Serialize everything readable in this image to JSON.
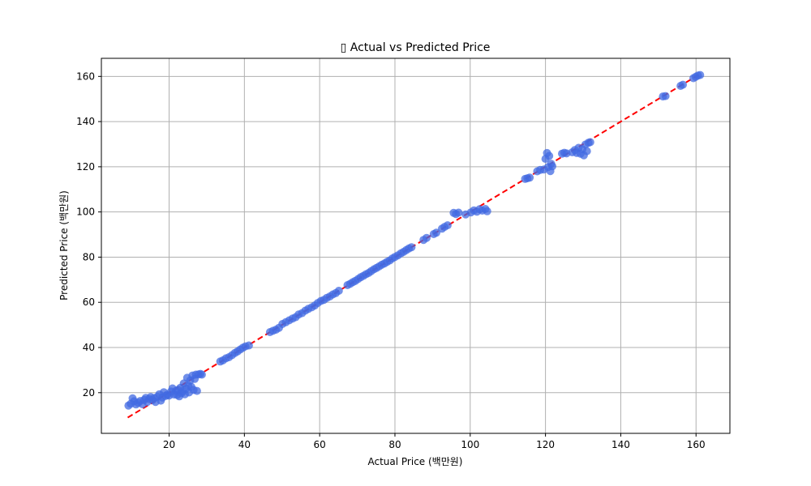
{
  "chart_data": {
    "type": "scatter",
    "title": "▯ Actual vs Predicted Price",
    "xlabel": "Actual Price (백만원)",
    "ylabel": "Predicted Price (백만원)",
    "xlim": [
      2,
      169
    ],
    "ylim": [
      2,
      168
    ],
    "xticks": [
      20,
      40,
      60,
      80,
      100,
      120,
      140,
      160
    ],
    "yticks": [
      20,
      40,
      60,
      80,
      100,
      120,
      140,
      160
    ],
    "grid": true,
    "point_color": "#4169e1",
    "line_color": "#ff0000",
    "reference_line": {
      "style": "dashed",
      "from": [
        9,
        9
      ],
      "to": [
        161,
        161
      ]
    },
    "points": [
      [
        9.2,
        14.3
      ],
      [
        9.8,
        15.1
      ],
      [
        10.3,
        17.5
      ],
      [
        10.7,
        16.2
      ],
      [
        11.2,
        14.8
      ],
      [
        11.8,
        15.5
      ],
      [
        12.3,
        16.3
      ],
      [
        12.9,
        14.9
      ],
      [
        13.4,
        16.8
      ],
      [
        13.8,
        17.7
      ],
      [
        14.2,
        15.9
      ],
      [
        14.7,
        17.2
      ],
      [
        15.1,
        18.1
      ],
      [
        15.6,
        16.7
      ],
      [
        16.0,
        17.6
      ],
      [
        16.4,
        15.9
      ],
      [
        16.9,
        18.2
      ],
      [
        17.4,
        19.3
      ],
      [
        17.8,
        16.5
      ],
      [
        18.2,
        17.9
      ],
      [
        18.6,
        20.2
      ],
      [
        19.1,
        18.6
      ],
      [
        19.5,
        19.1
      ],
      [
        20.0,
        18.7
      ],
      [
        20.5,
        20.5
      ],
      [
        20.9,
        21.9
      ],
      [
        21.3,
        19.2
      ],
      [
        21.8,
        20.8
      ],
      [
        22.1,
        19.0
      ],
      [
        22.4,
        21.3
      ],
      [
        22.7,
        18.4
      ],
      [
        23.0,
        22.2
      ],
      [
        23.3,
        19.8
      ],
      [
        23.6,
        20.7
      ],
      [
        23.9,
        24.1
      ],
      [
        24.2,
        19.3
      ],
      [
        24.5,
        21.8
      ],
      [
        24.8,
        26.6
      ],
      [
        25.1,
        23.1
      ],
      [
        25.3,
        20.1
      ],
      [
        25.6,
        25.4
      ],
      [
        25.9,
        22.6
      ],
      [
        26.2,
        27.6
      ],
      [
        26.5,
        21.2
      ],
      [
        26.8,
        26.1
      ],
      [
        27.1,
        28.0
      ],
      [
        27.4,
        20.8
      ],
      [
        27.8,
        28.1
      ],
      [
        28.3,
        28.3
      ],
      [
        28.7,
        28.0
      ],
      [
        33.6,
        33.8
      ],
      [
        34.3,
        34.3
      ],
      [
        35.1,
        35.2
      ],
      [
        35.9,
        35.7
      ],
      [
        36.7,
        36.6
      ],
      [
        37.5,
        37.6
      ],
      [
        38.2,
        38.3
      ],
      [
        38.9,
        39.1
      ],
      [
        39.6,
        39.9
      ],
      [
        40.3,
        40.5
      ],
      [
        41.2,
        40.9
      ],
      [
        46.8,
        46.8
      ],
      [
        47.6,
        47.4
      ],
      [
        48.4,
        47.9
      ],
      [
        49.2,
        48.7
      ],
      [
        50.1,
        50.4
      ],
      [
        51.0,
        51.2
      ],
      [
        51.9,
        52.0
      ],
      [
        52.8,
        52.8
      ],
      [
        53.6,
        53.4
      ],
      [
        54.4,
        54.6
      ],
      [
        55.3,
        55.2
      ],
      [
        56.2,
        56.3
      ],
      [
        57.0,
        57.1
      ],
      [
        57.9,
        57.8
      ],
      [
        58.7,
        58.6
      ],
      [
        59.5,
        59.7
      ],
      [
        60.3,
        60.6
      ],
      [
        61.1,
        61.1
      ],
      [
        61.9,
        62.0
      ],
      [
        62.7,
        62.6
      ],
      [
        63.5,
        63.5
      ],
      [
        64.3,
        64.1
      ],
      [
        65.1,
        65.1
      ],
      [
        67.4,
        67.6
      ],
      [
        68.1,
        68.2
      ],
      [
        68.8,
        68.9
      ],
      [
        69.5,
        69.5
      ],
      [
        70.2,
        70.3
      ],
      [
        70.9,
        71.1
      ],
      [
        71.6,
        71.7
      ],
      [
        72.3,
        72.4
      ],
      [
        73.0,
        73.0
      ],
      [
        73.7,
        73.8
      ],
      [
        74.4,
        74.6
      ],
      [
        75.1,
        75.2
      ],
      [
        75.8,
        75.9
      ],
      [
        76.5,
        76.6
      ],
      [
        77.2,
        77.2
      ],
      [
        77.9,
        77.9
      ],
      [
        78.6,
        78.5
      ],
      [
        79.3,
        79.4
      ],
      [
        80.0,
        80.1
      ],
      [
        80.8,
        80.8
      ],
      [
        81.6,
        81.7
      ],
      [
        82.3,
        82.3
      ],
      [
        83.0,
        83.1
      ],
      [
        83.7,
        83.8
      ],
      [
        84.4,
        84.4
      ],
      [
        87.6,
        87.6
      ],
      [
        88.4,
        88.5
      ],
      [
        90.3,
        90.2
      ],
      [
        91.0,
        90.8
      ],
      [
        92.5,
        92.6
      ],
      [
        93.2,
        93.4
      ],
      [
        94.0,
        94.1
      ],
      [
        95.6,
        99.6
      ],
      [
        96.2,
        99.1
      ],
      [
        96.9,
        99.7
      ],
      [
        98.8,
        98.9
      ],
      [
        100.2,
        99.8
      ],
      [
        101.0,
        100.7
      ],
      [
        101.8,
        100.1
      ],
      [
        102.5,
        101.2
      ],
      [
        103.2,
        100.6
      ],
      [
        104.0,
        101.3
      ],
      [
        104.5,
        100.3
      ],
      [
        114.6,
        114.6
      ],
      [
        115.2,
        114.9
      ],
      [
        115.8,
        115.2
      ],
      [
        117.8,
        118.0
      ],
      [
        118.6,
        118.6
      ],
      [
        119.6,
        118.8
      ],
      [
        120.0,
        123.5
      ],
      [
        120.4,
        126.1
      ],
      [
        120.7,
        119.9
      ],
      [
        121.0,
        124.8
      ],
      [
        121.3,
        118.1
      ],
      [
        121.5,
        121.3
      ],
      [
        121.8,
        120.2
      ],
      [
        124.4,
        125.8
      ],
      [
        125.0,
        126.2
      ],
      [
        125.6,
        125.9
      ],
      [
        127.1,
        126.4
      ],
      [
        127.8,
        127.4
      ],
      [
        128.3,
        126.1
      ],
      [
        128.8,
        128.4
      ],
      [
        129.3,
        125.8
      ],
      [
        129.8,
        127.8
      ],
      [
        130.2,
        125.1
      ],
      [
        130.6,
        129.8
      ],
      [
        131.0,
        126.9
      ],
      [
        131.4,
        130.6
      ],
      [
        131.9,
        130.9
      ],
      [
        151.2,
        151.1
      ],
      [
        151.9,
        151.3
      ],
      [
        155.9,
        155.8
      ],
      [
        156.5,
        156.3
      ],
      [
        159.3,
        159.2
      ],
      [
        159.9,
        159.8
      ],
      [
        160.5,
        160.4
      ],
      [
        161.1,
        160.6
      ]
    ]
  }
}
